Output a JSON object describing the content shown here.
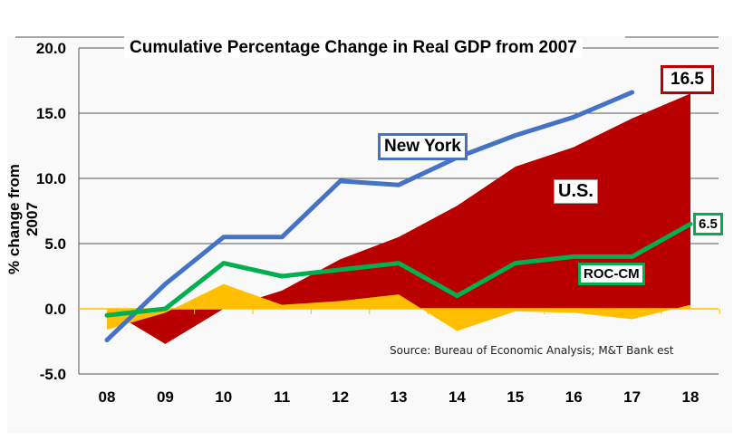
{
  "chart_data": {
    "type": "area",
    "title": "Cumulative Percentage Change in Real GDP from 2007",
    "ylabel": "% change from 2007",
    "xlabel": "",
    "categories": [
      "08",
      "09",
      "10",
      "11",
      "12",
      "13",
      "14",
      "15",
      "16",
      "17",
      "18"
    ],
    "ylim": [
      -5,
      20
    ],
    "yticks": [
      "-5.0",
      "0.0",
      "5.0",
      "10.0",
      "15.0",
      "20.0"
    ],
    "grid": true,
    "series": [
      {
        "name": "U.S.",
        "kind": "area",
        "color": "#b80000",
        "values": [
          0,
          -2.7,
          0,
          1.4,
          3.8,
          5.5,
          7.9,
          10.9,
          12.4,
          14.6,
          16.5
        ]
      },
      {
        "kind": "area",
        "color": "#ffbf00",
        "values": [
          -1.6,
          -0.3,
          1.9,
          0.3,
          0.6,
          1.1,
          -1.7,
          -0.2,
          -0.3,
          -0.8,
          0.3
        ]
      },
      {
        "name": "New York",
        "kind": "line",
        "color": "#4472c4",
        "values": [
          -2.4,
          1.9,
          5.5,
          5.5,
          9.8,
          9.5,
          11.6,
          13.3,
          14.7,
          16.6,
          null
        ]
      },
      {
        "name": "ROC-CM",
        "kind": "line",
        "color": "#00b050",
        "values": [
          -0.5,
          0,
          3.5,
          2.5,
          3.0,
          3.5,
          1.0,
          3.5,
          4.0,
          4.0,
          6.5
        ]
      }
    ],
    "annotations": {
      "us_end": "16.5",
      "roc_end": "6.5",
      "source": "Source: Bureau of Economic Analysis; M&T Bank est"
    }
  }
}
